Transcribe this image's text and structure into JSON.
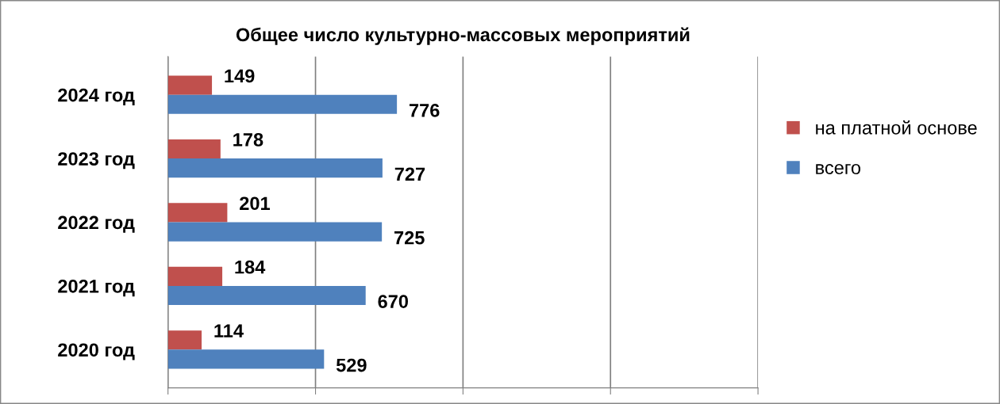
{
  "chart_data": {
    "type": "bar",
    "orientation": "horizontal",
    "title": "Общее число культурно-массовых мероприятий",
    "categories": [
      "2024 год",
      "2023 год",
      "2022 год",
      "2021 год",
      "2020 год"
    ],
    "series": [
      {
        "name": "на платной основе",
        "color": "#c0504d",
        "values": [
          149,
          178,
          201,
          184,
          114
        ]
      },
      {
        "name": "всего",
        "color": "#4f81bd",
        "values": [
          776,
          727,
          725,
          670,
          529
        ]
      }
    ],
    "xlim": [
      0,
      2000
    ],
    "xticks": [
      {
        "value": 0,
        "label": null
      },
      {
        "value": 500,
        "label": null
      },
      {
        "value": 1000,
        "label": null
      },
      {
        "value": 1500,
        "label": null
      },
      {
        "value": 2000,
        "label": null
      }
    ],
    "tick_labels": "y",
    "grid": "x",
    "legend": "right",
    "data_labels": true
  }
}
